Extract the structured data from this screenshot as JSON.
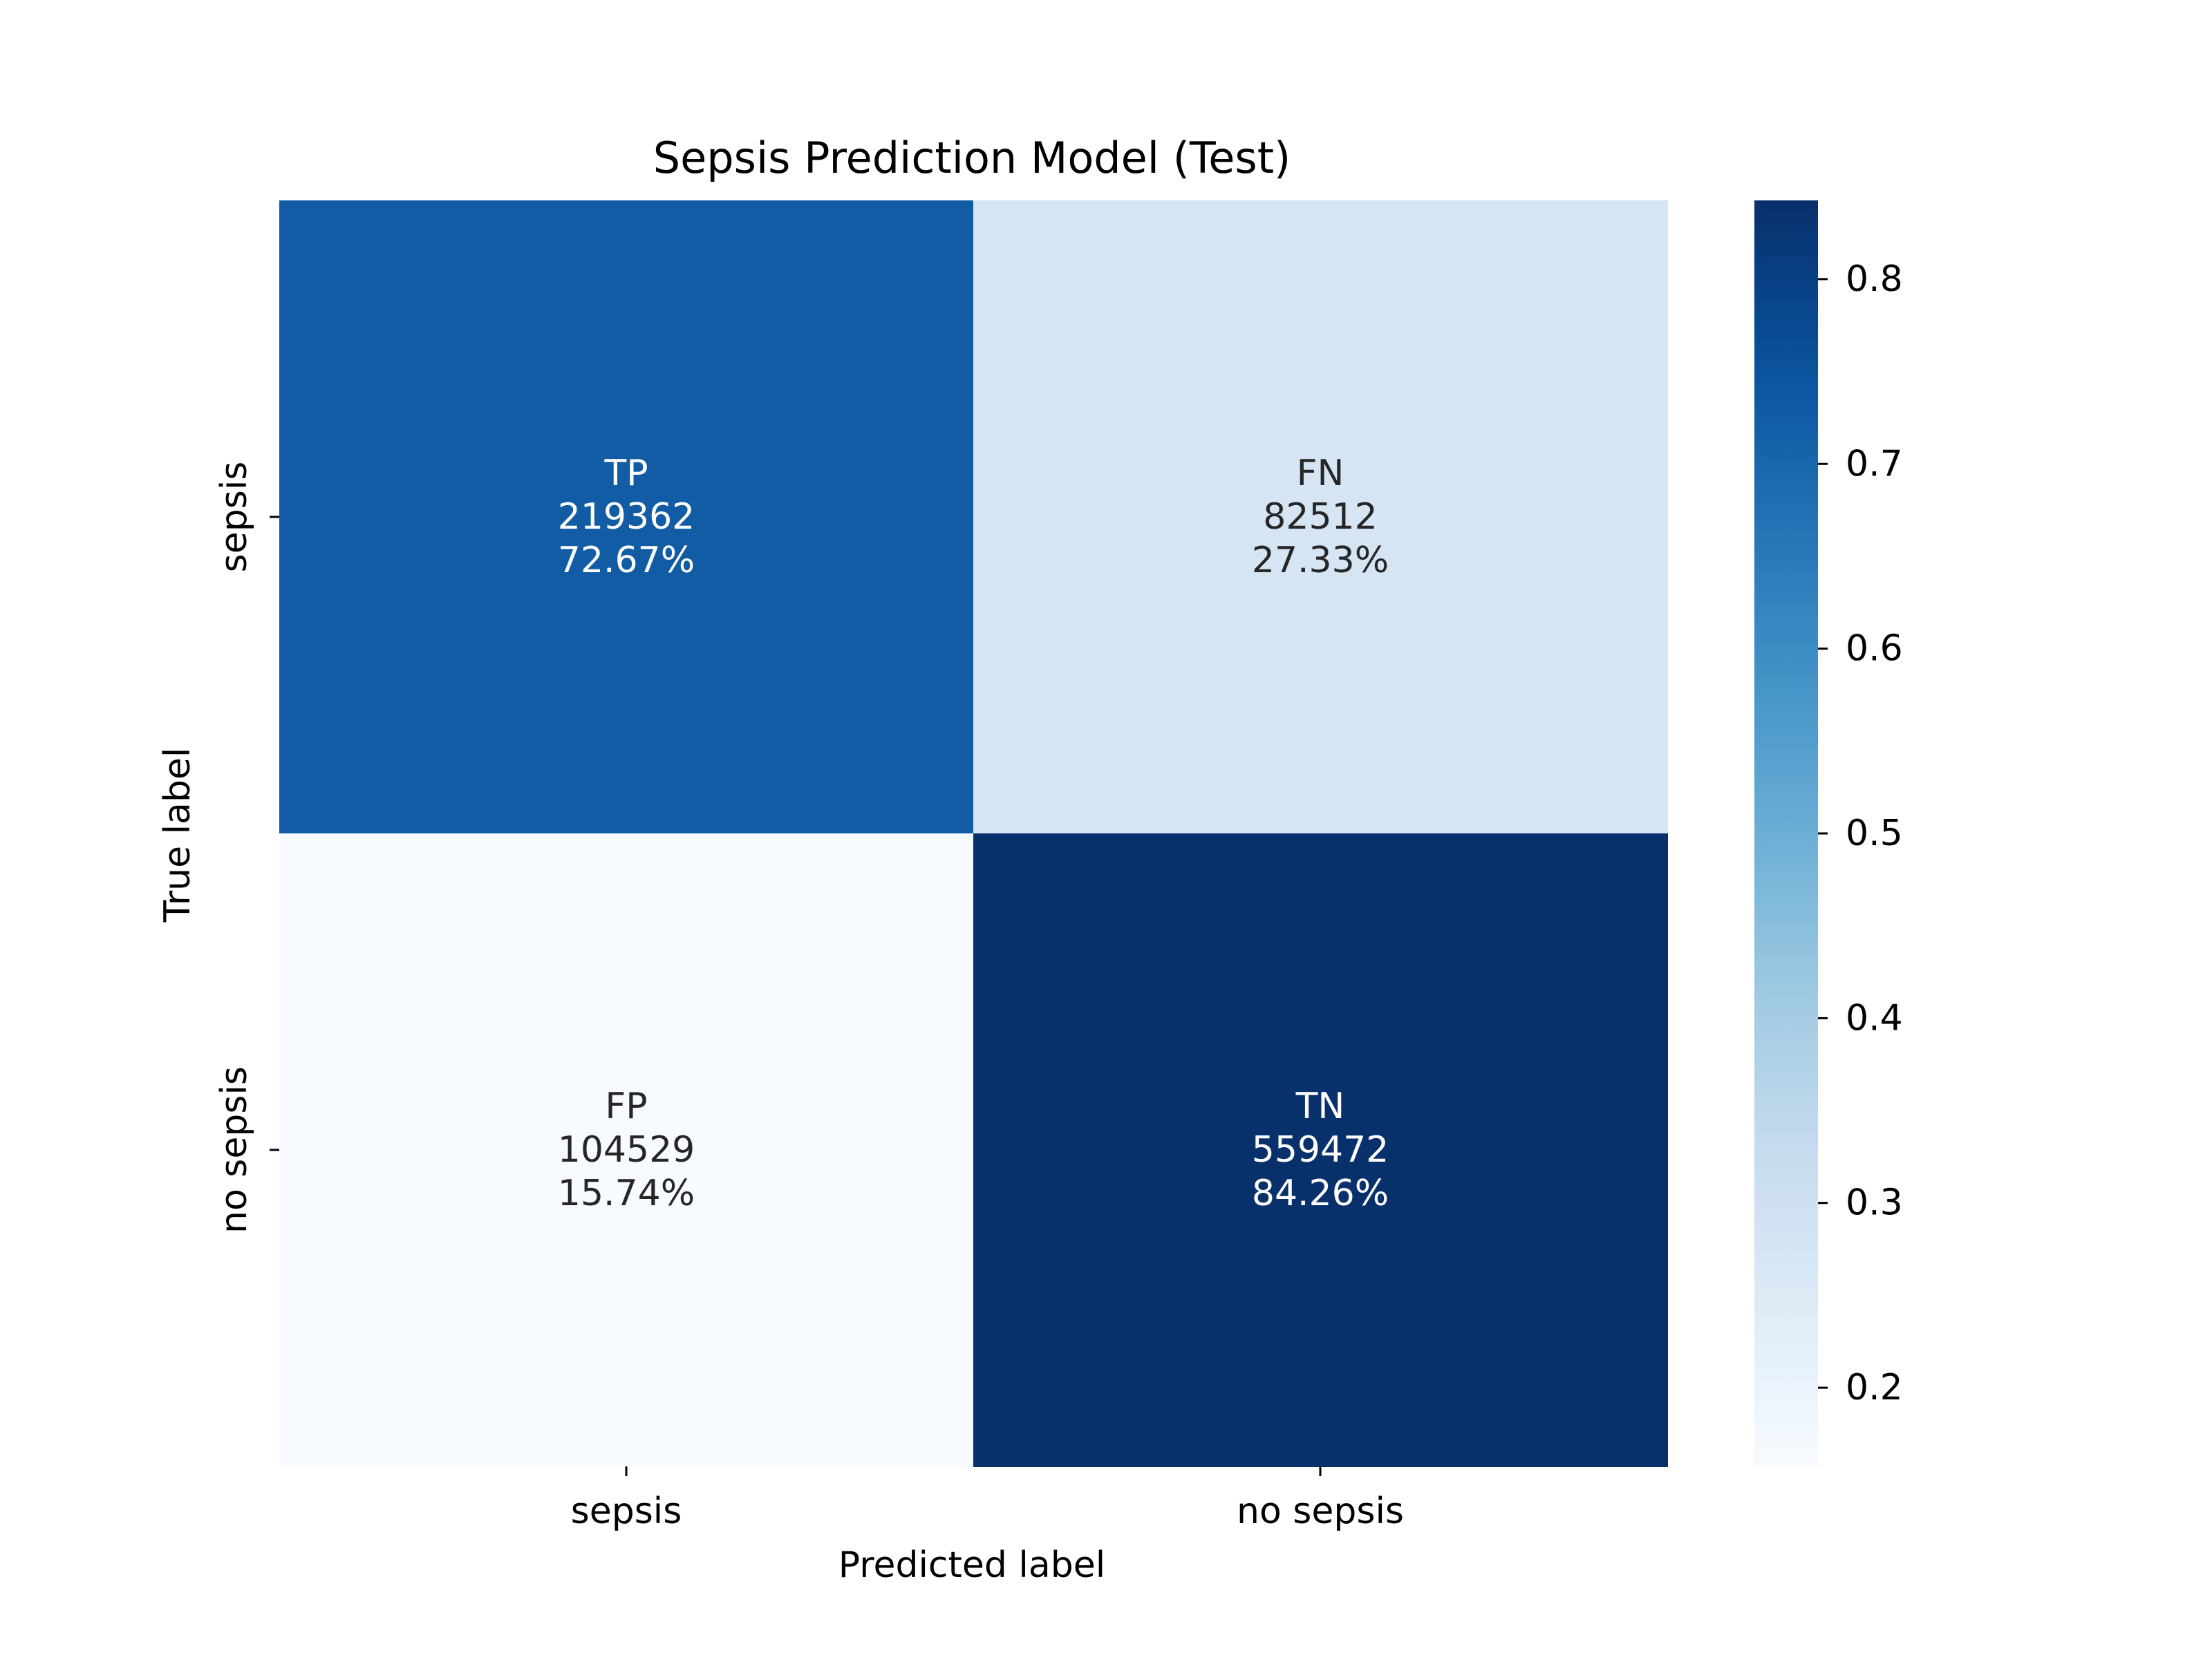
{
  "chart_data": {
    "type": "heatmap",
    "title": "Sepsis Prediction Model (Test)",
    "xlabel": "Predicted label",
    "ylabel": "True label",
    "x_categories": [
      "sepsis",
      "no sepsis"
    ],
    "y_categories": [
      "sepsis",
      "no sepsis"
    ],
    "cells": [
      {
        "row": 0,
        "col": 0,
        "tag": "TP",
        "count": "219362",
        "pct_label": "72.67%",
        "value": 0.7267
      },
      {
        "row": 0,
        "col": 1,
        "tag": "FN",
        "count": "82512",
        "pct_label": "27.33%",
        "value": 0.2733
      },
      {
        "row": 1,
        "col": 0,
        "tag": "FP",
        "count": "104529",
        "pct_label": "15.74%",
        "value": 0.1574
      },
      {
        "row": 1,
        "col": 1,
        "tag": "TN",
        "count": "559472",
        "pct_label": "84.26%",
        "value": 0.8426
      }
    ],
    "colorbar": {
      "colormap": "Blues",
      "range": [
        0.1574,
        0.8426
      ],
      "ticks": [
        "0.2",
        "0.3",
        "0.4",
        "0.5",
        "0.6",
        "0.7",
        "0.8"
      ]
    },
    "text_colors": {
      "light": "#ffffff",
      "dark": "#262626"
    },
    "grid": false
  }
}
